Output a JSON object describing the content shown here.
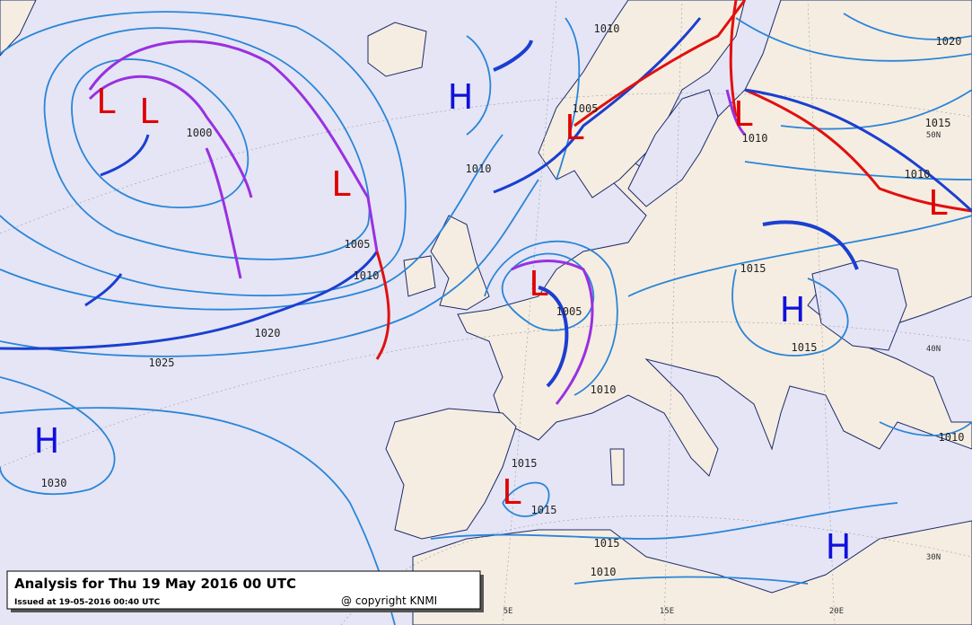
{
  "title": "Analysis for Thu 19 May 2016  00 UTC",
  "issued": "Issued at 19-05-2016  00:40 UTC",
  "copyright": "@ copyright KNMI",
  "centers": [
    "H",
    "L",
    "L",
    "L",
    "L",
    "L",
    "L",
    "L",
    "H",
    "H",
    "L",
    "H"
  ],
  "isobar_labels": [
    "1010",
    "1020",
    "1000",
    "1005",
    "1010",
    "1015",
    "1010",
    "1010",
    "1005",
    "1010",
    "1015",
    "1005",
    "1020",
    "1025",
    "1015",
    "1010",
    "1010",
    "1030",
    "1015",
    "1015",
    "1015",
    "1010"
  ],
  "grid_labels": [
    "50N",
    "40N",
    "30N",
    "5E",
    "15E",
    "20E"
  ]
}
